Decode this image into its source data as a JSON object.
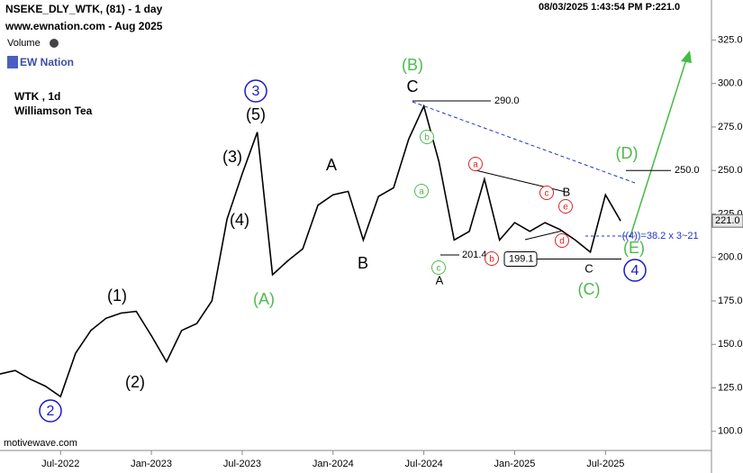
{
  "chart_data": {
    "type": "line",
    "title": "NSEKE_DLY_WTK, (81) - 1 day",
    "subtitle": "www.ewnation.com  - Aug 2025",
    "timestamp": "08/03/2025 1:43:54 PM   P:221.0",
    "volume_label": "Volume",
    "brand": "EW Nation",
    "symbol_label": "WTK , 1d",
    "company": "Williamson Tea",
    "footer": "motivewave.com",
    "fib_note": "-((4))=38.2 x 3~21",
    "color": "#000000",
    "x": [
      "2022-03",
      "2022-04",
      "2022-05",
      "2022-06",
      "2022-07",
      "2022-08",
      "2022-09",
      "2022-10",
      "2022-11",
      "2022-12",
      "2023-01",
      "2023-02",
      "2023-03",
      "2023-04",
      "2023-05",
      "2023-06",
      "2023-07",
      "2023-08",
      "2023-09",
      "2023-10",
      "2023-11",
      "2023-12",
      "2024-01",
      "2024-02",
      "2024-03",
      "2024-04",
      "2024-05",
      "2024-06",
      "2024-07",
      "2024-08",
      "2024-09",
      "2024-10",
      "2024-11",
      "2024-12",
      "2025-01",
      "2025-02",
      "2025-03",
      "2025-04",
      "2025-05",
      "2025-06",
      "2025-07",
      "2025-08"
    ],
    "values": [
      133,
      135,
      130,
      126,
      120,
      145,
      158,
      165,
      168,
      169,
      155,
      140,
      158,
      162,
      175,
      222,
      248,
      272,
      190,
      198,
      205,
      230,
      236,
      238,
      210,
      235,
      240,
      268,
      287,
      255,
      210,
      215,
      245,
      210,
      220,
      215,
      220,
      216,
      210,
      203,
      236,
      221
    ],
    "xlim": [
      "2022-03",
      "2026-02"
    ],
    "xticks": [
      {
        "value": "2022-07",
        "label": "Jul-2022"
      },
      {
        "value": "2023-01",
        "label": "Jan-2023"
      },
      {
        "value": "2023-07",
        "label": "Jul-2023"
      },
      {
        "value": "2024-01",
        "label": "Jan-2024"
      },
      {
        "value": "2024-07",
        "label": "Jul-2024"
      },
      {
        "value": "2025-01",
        "label": "Jan-2025"
      },
      {
        "value": "2025-07",
        "label": "Jul-2025"
      }
    ],
    "ylim": [
      89,
      348
    ],
    "yticks": [
      {
        "value": 100,
        "label": "100.0"
      },
      {
        "value": 125,
        "label": "125.0"
      },
      {
        "value": 150,
        "label": "150.0"
      },
      {
        "value": 175,
        "label": "175.0"
      },
      {
        "value": 200,
        "label": "200.0"
      },
      {
        "value": 225,
        "label": "225.0"
      },
      {
        "value": 250,
        "label": "250.0"
      },
      {
        "value": 275,
        "label": "275.0"
      },
      {
        "value": 300,
        "label": "300.0"
      },
      {
        "value": 325,
        "label": "325.0"
      }
    ],
    "last_price": {
      "value": 221,
      "label": "221.0"
    },
    "levels": [
      {
        "value": 290,
        "label": "290.0"
      },
      {
        "value": 250,
        "label": "250.0"
      },
      {
        "value": 201.4,
        "label": "201.4"
      },
      {
        "value": 199.1,
        "label": "199.1"
      }
    ],
    "annotations": [
      {
        "text": "2",
        "color": "#1a1acc",
        "circled": true
      },
      {
        "text": "(1)",
        "color": "#000000",
        "circled": false
      },
      {
        "text": "(2)",
        "color": "#000000",
        "circled": false
      },
      {
        "text": "(3)",
        "color": "#000000",
        "circled": false
      },
      {
        "text": "(4)",
        "color": "#000000",
        "circled": false
      },
      {
        "text": "(5)",
        "color": "#000000",
        "circled": false
      },
      {
        "text": "3",
        "color": "#1a1acc",
        "circled": true
      },
      {
        "text": "(A)",
        "color": "#4cbb4c",
        "circled": false
      },
      {
        "text": "A",
        "color": "#000000",
        "circled": false
      },
      {
        "text": "B",
        "color": "#000000",
        "circled": false
      },
      {
        "text": "(B)",
        "color": "#4cbb4c",
        "circled": false
      },
      {
        "text": "C",
        "color": "#000000",
        "circled": false
      },
      {
        "text": "A",
        "color": "#000000",
        "circled": false
      },
      {
        "text": "(C)",
        "color": "#4cbb4c",
        "circled": false
      },
      {
        "text": "C",
        "color": "#000000",
        "circled": false
      },
      {
        "text": "(D)",
        "color": "#4cbb4c",
        "circled": false
      },
      {
        "text": "(E)",
        "color": "#4cbb4c",
        "circled": false
      },
      {
        "text": "4",
        "color": "#1a1acc",
        "circled": true
      },
      {
        "text": "B",
        "color": "#000000",
        "circled": false
      },
      {
        "text": "b",
        "color": "#4cbb4c",
        "circled": true
      },
      {
        "text": "a",
        "color": "#4cbb4c",
        "circled": true
      },
      {
        "text": "c",
        "color": "#4cbb4c",
        "circled": true
      },
      {
        "text": "a",
        "color": "#dd2222",
        "circled": true
      },
      {
        "text": "b",
        "color": "#dd2222",
        "circled": true
      },
      {
        "text": "c",
        "color": "#dd2222",
        "circled": true
      },
      {
        "text": "e",
        "color": "#dd2222",
        "circled": true
      },
      {
        "text": "d",
        "color": "#dd2222",
        "circled": true
      }
    ]
  }
}
